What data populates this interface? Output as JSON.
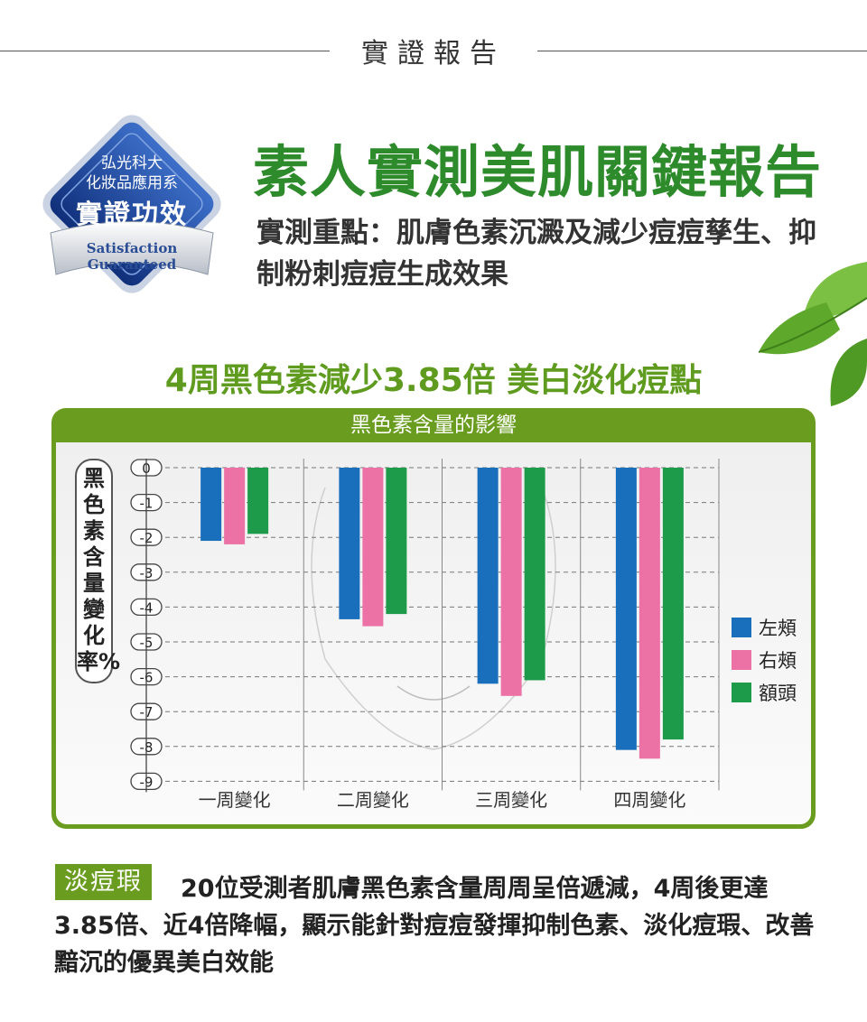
{
  "header": {
    "title": "實證報告"
  },
  "badge": {
    "line1": "弘光科大",
    "line2": "化妝品應用系",
    "line3": "實證功效",
    "ribbon1": "Satisfaction",
    "ribbon2": "Guaranteed"
  },
  "main": {
    "title": "素人實測美肌關鍵報告",
    "focus": "實測重點：肌膚色素沉澱及減少痘痘孳生、抑制粉刺痘痘生成效果",
    "subtitle": "4周黑色素減少3.85倍  美白淡化痘點"
  },
  "chart_data": {
    "type": "bar",
    "title": "黑色素含量的影響",
    "ylabel": "黑色素含量變化率%",
    "categories": [
      "一周變化",
      "二周變化",
      "三周變化",
      "四周變化"
    ],
    "yticks": [
      "0",
      "-1",
      "-2",
      "-3",
      "-4",
      "-5",
      "-6",
      "-7",
      "-8",
      "-9"
    ],
    "ylim": [
      -9,
      0
    ],
    "grid": true,
    "legend_position": "right",
    "series": [
      {
        "name": "左頰",
        "color": "#1a6fbd",
        "values": [
          -2.1,
          -4.35,
          -6.2,
          -8.1
        ]
      },
      {
        "name": "右頰",
        "color": "#ec72a6",
        "values": [
          -2.2,
          -4.55,
          -6.55,
          -8.35
        ]
      },
      {
        "name": "額頭",
        "color": "#1e9b4a",
        "values": [
          -1.9,
          -4.2,
          -6.1,
          -7.8
        ]
      }
    ]
  },
  "footer": {
    "tag": "淡痘瑕",
    "text": "20位受測者肌膚黑色素含量周周呈倍遞減，4周後更達3.85倍、近4倍降幅，顯示能針對痘痘發揮抑制色素、淡化痘瑕、改善黯沉的優異美白效能"
  },
  "colors": {
    "brand_green": "#2e8b2b",
    "panel_green": "#6a9d1f",
    "badge_blue": "#1d4fa3"
  }
}
